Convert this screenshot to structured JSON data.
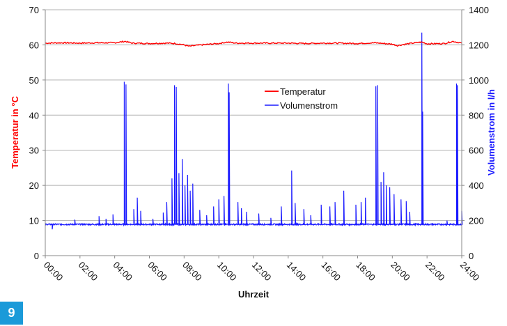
{
  "figure": {
    "number": "9",
    "badge_color": "#1a9ad9"
  },
  "chart_data": {
    "type": "line",
    "title": "",
    "xlabel": "Uhrzeit",
    "ylabel": "Temperatur in °C",
    "y2label": "Volumenstrom in l/h",
    "x_ticks": [
      "00:00",
      "02:00",
      "04:00",
      "06:00",
      "08:00",
      "10:00",
      "12:00",
      "14:00",
      "16:00",
      "18:00",
      "20:00",
      "22:00",
      "24:00"
    ],
    "y_ticks": [
      0,
      10,
      20,
      30,
      40,
      50,
      60,
      70
    ],
    "y2_ticks": [
      0,
      200,
      400,
      600,
      800,
      1000,
      1200,
      1400
    ],
    "ylim": [
      0,
      70
    ],
    "y2lim": [
      0,
      1400
    ],
    "xlim_hours": [
      0,
      24
    ],
    "grid": true,
    "legend": {
      "position": "inside-top-center",
      "entries": [
        "Temperatur",
        "Volumenstrom"
      ]
    },
    "series": [
      {
        "name": "Temperatur",
        "axis": "left",
        "color": "#ff0000",
        "x_hours": [
          0,
          1,
          2,
          3,
          4,
          4.6,
          5,
          6,
          7,
          7.5,
          8,
          8.3,
          8.6,
          9,
          10,
          10.5,
          11,
          12,
          13,
          14,
          15,
          16,
          17,
          18,
          19,
          19.5,
          20,
          20.3,
          21,
          21.7,
          22,
          23,
          23.5,
          24
        ],
        "values": [
          60.5,
          60.6,
          60.5,
          60.6,
          60.6,
          61,
          60.5,
          60.4,
          60.5,
          60.4,
          60,
          59.6,
          59.8,
          60,
          60.4,
          60.8,
          60.5,
          60.5,
          60.5,
          60.5,
          60.4,
          60.5,
          60.5,
          60.4,
          60.6,
          60.4,
          60.2,
          59.8,
          60.4,
          60.8,
          60.3,
          60.4,
          61,
          60.5
        ]
      },
      {
        "name": "Volumenstrom",
        "axis": "right",
        "color": "#1a1aff",
        "baseline": 178,
        "spikes": [
          {
            "t": 0.4,
            "v": 150
          },
          {
            "t": 1.7,
            "v": 205
          },
          {
            "t": 3.1,
            "v": 225
          },
          {
            "t": 3.5,
            "v": 210
          },
          {
            "t": 3.9,
            "v": 235
          },
          {
            "t": 4.55,
            "v": 990
          },
          {
            "t": 4.65,
            "v": 975
          },
          {
            "t": 5.1,
            "v": 265
          },
          {
            "t": 5.3,
            "v": 330
          },
          {
            "t": 5.5,
            "v": 255
          },
          {
            "t": 6.2,
            "v": 210
          },
          {
            "t": 6.8,
            "v": 245
          },
          {
            "t": 7.0,
            "v": 305
          },
          {
            "t": 7.3,
            "v": 440
          },
          {
            "t": 7.45,
            "v": 970
          },
          {
            "t": 7.55,
            "v": 960
          },
          {
            "t": 7.7,
            "v": 470
          },
          {
            "t": 7.9,
            "v": 550
          },
          {
            "t": 8.05,
            "v": 400
          },
          {
            "t": 8.2,
            "v": 460
          },
          {
            "t": 8.35,
            "v": 370
          },
          {
            "t": 8.5,
            "v": 410
          },
          {
            "t": 8.9,
            "v": 260
          },
          {
            "t": 9.3,
            "v": 230
          },
          {
            "t": 9.7,
            "v": 280
          },
          {
            "t": 10.0,
            "v": 320
          },
          {
            "t": 10.3,
            "v": 340
          },
          {
            "t": 10.55,
            "v": 980
          },
          {
            "t": 10.6,
            "v": 930
          },
          {
            "t": 11.1,
            "v": 305
          },
          {
            "t": 11.3,
            "v": 270
          },
          {
            "t": 11.6,
            "v": 250
          },
          {
            "t": 12.3,
            "v": 240
          },
          {
            "t": 13.0,
            "v": 215
          },
          {
            "t": 13.6,
            "v": 280
          },
          {
            "t": 14.2,
            "v": 485
          },
          {
            "t": 14.4,
            "v": 300
          },
          {
            "t": 14.9,
            "v": 265
          },
          {
            "t": 15.3,
            "v": 230
          },
          {
            "t": 15.9,
            "v": 290
          },
          {
            "t": 16.4,
            "v": 280
          },
          {
            "t": 16.7,
            "v": 305
          },
          {
            "t": 17.2,
            "v": 370
          },
          {
            "t": 17.9,
            "v": 290
          },
          {
            "t": 18.2,
            "v": 305
          },
          {
            "t": 18.45,
            "v": 330
          },
          {
            "t": 19.05,
            "v": 965
          },
          {
            "t": 19.15,
            "v": 970
          },
          {
            "t": 19.35,
            "v": 420
          },
          {
            "t": 19.5,
            "v": 475
          },
          {
            "t": 19.65,
            "v": 400
          },
          {
            "t": 19.85,
            "v": 390
          },
          {
            "t": 20.1,
            "v": 350
          },
          {
            "t": 20.5,
            "v": 320
          },
          {
            "t": 20.8,
            "v": 310
          },
          {
            "t": 21.0,
            "v": 250
          },
          {
            "t": 21.7,
            "v": 1270
          },
          {
            "t": 21.75,
            "v": 820
          },
          {
            "t": 22.3,
            "v": 185
          },
          {
            "t": 23.15,
            "v": 200
          },
          {
            "t": 23.7,
            "v": 980
          },
          {
            "t": 23.75,
            "v": 970
          },
          {
            "t": 24.0,
            "v": 255
          }
        ]
      }
    ]
  }
}
